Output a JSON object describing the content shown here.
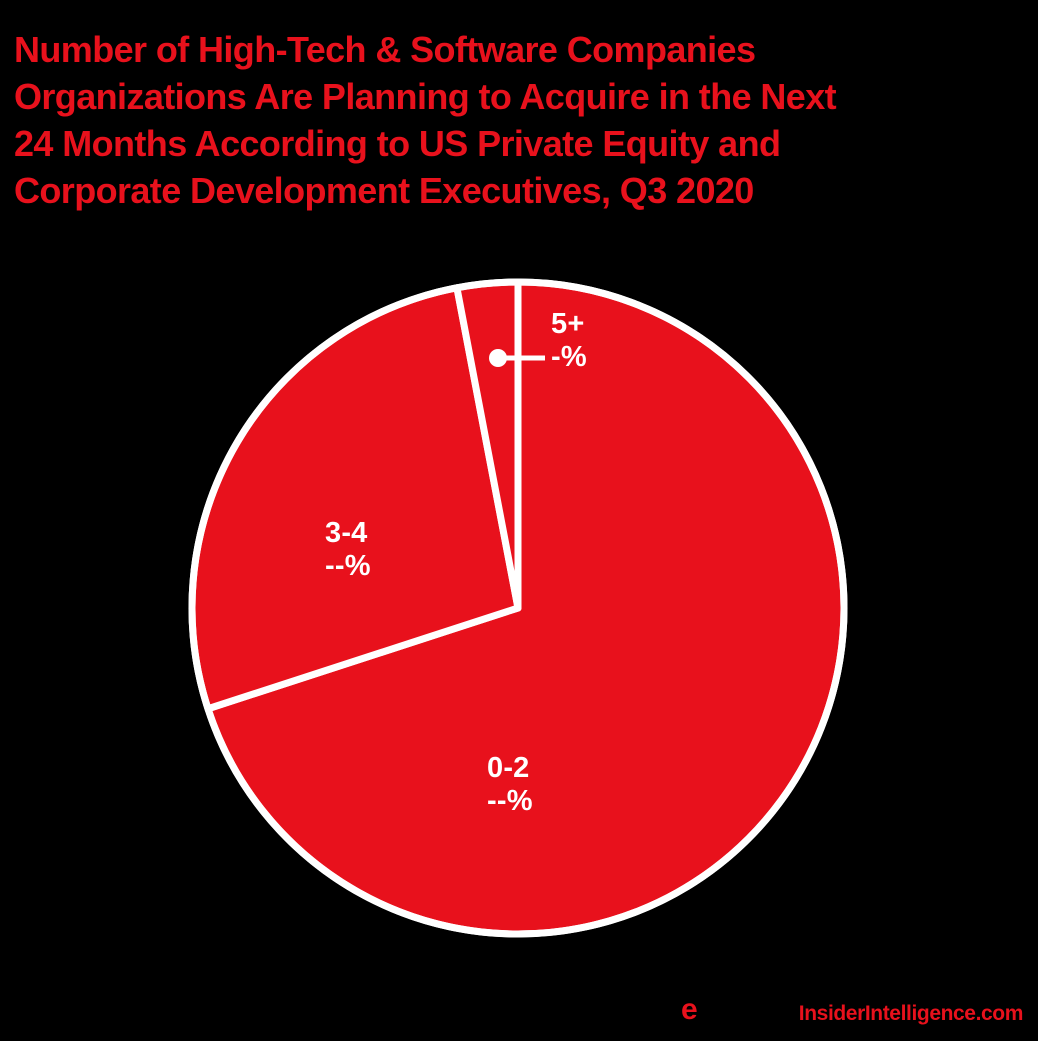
{
  "colors": {
    "red": "#E8111C",
    "white": "#FFFFFF",
    "background": "#000000"
  },
  "title": {
    "lines": [
      "Number of High-Tech & Software Companies",
      "Organizations Are Planning to Acquire in the Next",
      "24 Months According to US Private Equity and",
      "Corporate Development Executives, Q3 2020"
    ]
  },
  "chart_data": {
    "type": "pie",
    "title": "Number of High-Tech & Software Companies Organizations Are Planning to Acquire in the Next 24 Months According to US Private Equity and Corporate Development Executives, Q3 2020",
    "start_angle_deg": 0,
    "direction": "clockwise",
    "value_labels_masked": true,
    "slice_color": "#E8111C",
    "divider_color": "#FFFFFF",
    "slices": [
      {
        "label": "0-2",
        "value_label": "--%",
        "pct_estimated": 70
      },
      {
        "label": "3-4",
        "value_label": "--%",
        "pct_estimated": 27
      },
      {
        "label": "5+",
        "value_label": "-%",
        "pct_estimated": 3
      }
    ]
  },
  "footer": {
    "logo_e": "e",
    "site_url": "InsiderIntelligence.com"
  }
}
